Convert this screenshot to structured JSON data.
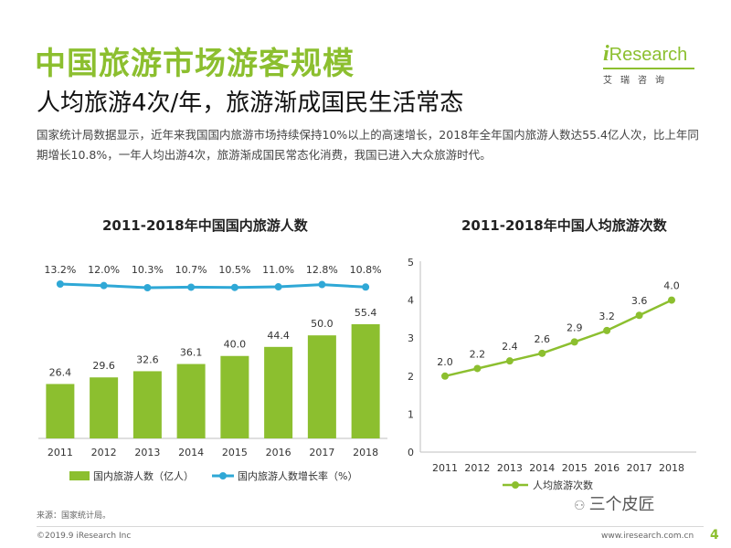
{
  "header": {
    "title": "中国旅游市场游客规模",
    "subtitle": "人均旅游4次/年，旅游渐成国民生活常态",
    "description": "国家统计局数据显示，近年来我国国内旅游市场持续保持10%以上的高速增长，2018年全年国内旅游人数达55.4亿人次，比上年同期增长10.8%，一年人均出游4次，旅游渐成国民常态化消费，我国已进入大众旅游时代。"
  },
  "logo": {
    "i": "i",
    "name": "Research",
    "sub": "艾瑞咨询"
  },
  "footer": {
    "source": "来源：国家统计局。",
    "copyright": "©2019.9 iResearch Inc",
    "url": "www.iresearch.com.cn",
    "page": "4",
    "wechat": "三个皮匠"
  },
  "colors": {
    "accent": "#8cbf2f",
    "line": "#2fa8d6"
  },
  "chart_data": [
    {
      "type": "bar",
      "title": "2011-2018年中国国内旅游人数",
      "categories": [
        "2011",
        "2012",
        "2013",
        "2014",
        "2015",
        "2016",
        "2017",
        "2018"
      ],
      "series": [
        {
          "name": "国内旅游人数（亿人）",
          "type": "bar",
          "values": [
            26.4,
            29.6,
            32.6,
            36.1,
            40.0,
            44.4,
            50.0,
            55.4
          ],
          "labels": [
            "26.4",
            "29.6",
            "32.6",
            "36.1",
            "40.0",
            "44.4",
            "50.0",
            "55.4"
          ],
          "color": "#8cbf2f"
        },
        {
          "name": "国内旅游人数增长率（%）",
          "type": "line",
          "values": [
            13.2,
            12.0,
            10.3,
            10.7,
            10.5,
            11.0,
            12.8,
            10.8
          ],
          "labels": [
            "13.2%",
            "12.0%",
            "10.3%",
            "10.7%",
            "10.5%",
            "11.0%",
            "12.8%",
            "10.8%"
          ],
          "color": "#2fa8d6"
        }
      ],
      "ylim": [
        0,
        60
      ],
      "legend": "bottom"
    },
    {
      "type": "line",
      "title": "2011-2018年中国人均旅游次数",
      "categories": [
        "2011",
        "2012",
        "2013",
        "2014",
        "2015",
        "2016",
        "2017",
        "2018"
      ],
      "series": [
        {
          "name": "人均旅游次数",
          "values": [
            2.0,
            2.2,
            2.4,
            2.6,
            2.9,
            3.2,
            3.6,
            4.0
          ],
          "labels": [
            "2.0",
            "2.2",
            "2.4",
            "2.6",
            "2.9",
            "3.2",
            "3.6",
            "4.0"
          ],
          "color": "#8cbf2f"
        }
      ],
      "yticks": [
        "0",
        "1",
        "2",
        "3",
        "4",
        "5"
      ],
      "ylim": [
        0,
        5
      ],
      "legend": "bottom"
    }
  ]
}
